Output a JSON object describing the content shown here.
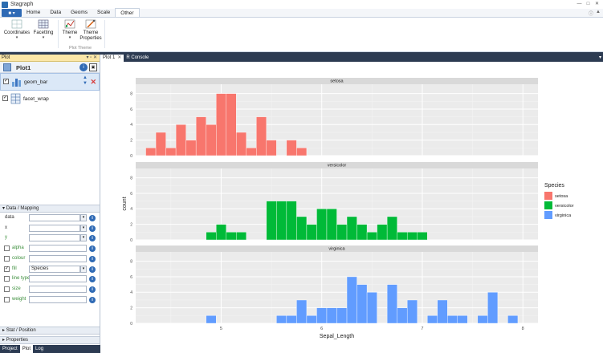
{
  "app": {
    "title": "Stagraph"
  },
  "menu": {
    "file_label": "■ ▾",
    "tabs": [
      "Home",
      "Data",
      "Geoms",
      "Scale",
      "Other"
    ],
    "active_tab": "Other"
  },
  "ribbon": {
    "coordinates": "Coordinates",
    "facetting": "Facetting",
    "theme": "Theme",
    "theme_properties": "Theme Properties",
    "group_plot_theme": "Plot Theme"
  },
  "left_panel": {
    "header": "Plot",
    "plot_name": "Plot1",
    "layers": [
      {
        "name": "geom_bar",
        "checked": true
      },
      {
        "name": "facet_wrap",
        "checked": true
      }
    ],
    "data_mapping_header": "Data / Mapping",
    "props": [
      {
        "label": "data",
        "value": "",
        "has_checkbox": false,
        "aes": false,
        "dropdown": true
      },
      {
        "label": "x",
        "value": "",
        "has_checkbox": false,
        "aes": false,
        "dropdown": true
      },
      {
        "label": "y",
        "value": "",
        "has_checkbox": false,
        "aes": true,
        "dropdown": true
      },
      {
        "label": "alpha",
        "value": "",
        "has_checkbox": true,
        "checked": false,
        "aes": true,
        "dropdown": false
      },
      {
        "label": "colour",
        "value": "",
        "has_checkbox": true,
        "checked": false,
        "aes": true,
        "dropdown": false
      },
      {
        "label": "fill",
        "value": "Species",
        "has_checkbox": true,
        "checked": true,
        "aes": true,
        "dropdown": true
      },
      {
        "label": "line type",
        "value": "",
        "has_checkbox": true,
        "checked": false,
        "aes": true,
        "dropdown": false
      },
      {
        "label": "size",
        "value": "",
        "has_checkbox": true,
        "checked": false,
        "aes": true,
        "dropdown": false
      },
      {
        "label": "weight",
        "value": "",
        "has_checkbox": true,
        "checked": false,
        "aes": true,
        "dropdown": false
      }
    ],
    "stat_position": "Stat / Position",
    "properties": "Properties"
  },
  "bottom_tabs": [
    "Project",
    "Plot",
    "Log"
  ],
  "bottom_active": "Plot",
  "doc_tabs": [
    "Plot 1",
    "R Console"
  ],
  "colors": {
    "setosa": "#f8766d",
    "versicolor": "#00ba38",
    "virginica": "#619cff",
    "panel_bg": "#ebebeb",
    "strip_bg": "#d9d9d9"
  },
  "chart_data": {
    "type": "bar",
    "xlabel": "Sepal_Length",
    "ylabel": "count",
    "x_ticks": [
      5,
      6,
      7,
      8
    ],
    "y_ticks": [
      0,
      2,
      4,
      6,
      8
    ],
    "xlim": [
      4.15,
      8.15
    ],
    "ylim": [
      0,
      9.2
    ],
    "legend": {
      "title": "Species",
      "position": "right",
      "entries": [
        "setosa",
        "versicolor",
        "virginica"
      ]
    },
    "bin_width": 0.1,
    "facets": [
      {
        "name": "setosa",
        "bins": [
          [
            4.3,
            1
          ],
          [
            4.4,
            3
          ],
          [
            4.5,
            1
          ],
          [
            4.6,
            4
          ],
          [
            4.7,
            2
          ],
          [
            4.8,
            5
          ],
          [
            4.9,
            4
          ],
          [
            5.0,
            8
          ],
          [
            5.1,
            8
          ],
          [
            5.2,
            3
          ],
          [
            5.3,
            1
          ],
          [
            5.4,
            5
          ],
          [
            5.5,
            2
          ],
          [
            5.7,
            2
          ],
          [
            5.8,
            1
          ]
        ]
      },
      {
        "name": "versicolor",
        "bins": [
          [
            4.9,
            1
          ],
          [
            5.0,
            2
          ],
          [
            5.1,
            1
          ],
          [
            5.2,
            1
          ],
          [
            5.5,
            5
          ],
          [
            5.6,
            5
          ],
          [
            5.7,
            5
          ],
          [
            5.8,
            3
          ],
          [
            5.9,
            2
          ],
          [
            6.0,
            4
          ],
          [
            6.1,
            4
          ],
          [
            6.2,
            2
          ],
          [
            6.3,
            3
          ],
          [
            6.4,
            2
          ],
          [
            6.5,
            1
          ],
          [
            6.6,
            2
          ],
          [
            6.7,
            3
          ],
          [
            6.8,
            1
          ],
          [
            6.9,
            1
          ],
          [
            7.0,
            1
          ]
        ]
      },
      {
        "name": "virginica",
        "bins": [
          [
            4.9,
            1
          ],
          [
            5.6,
            1
          ],
          [
            5.7,
            1
          ],
          [
            5.8,
            3
          ],
          [
            5.9,
            1
          ],
          [
            6.0,
            2
          ],
          [
            6.1,
            2
          ],
          [
            6.2,
            2
          ],
          [
            6.3,
            6
          ],
          [
            6.4,
            5
          ],
          [
            6.5,
            4
          ],
          [
            6.7,
            5
          ],
          [
            6.8,
            2
          ],
          [
            6.9,
            3
          ],
          [
            7.1,
            1
          ],
          [
            7.2,
            3
          ],
          [
            7.3,
            1
          ],
          [
            7.4,
            1
          ],
          [
            7.6,
            1
          ],
          [
            7.7,
            4
          ],
          [
            7.9,
            1
          ]
        ]
      }
    ]
  }
}
